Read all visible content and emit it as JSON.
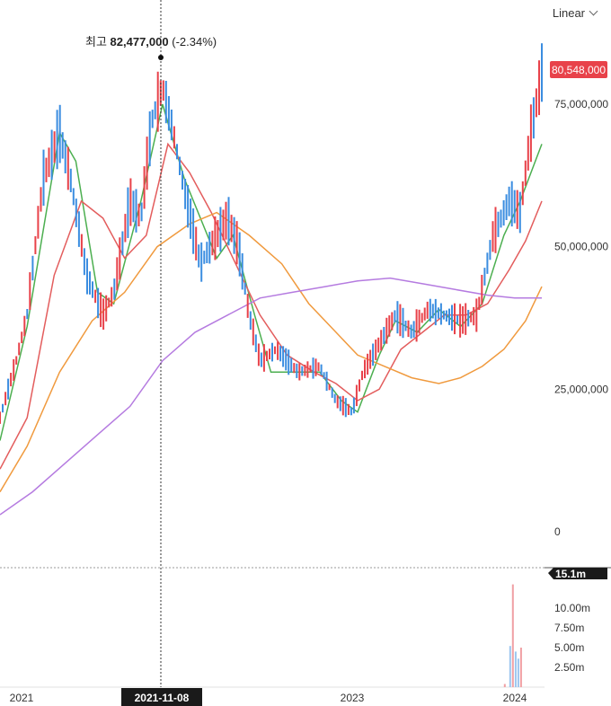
{
  "toolbar": {
    "scale_mode": "Linear"
  },
  "annotation": {
    "label": "최고",
    "value": "82,477,000",
    "change": "(-2.34%)"
  },
  "chart_data": {
    "type": "candlestick",
    "up_color": "#e8424a",
    "down_color": "#3b8de0",
    "x_ticks": [
      "2021",
      "2023",
      "2024"
    ],
    "crosshair_x": "2021-11-08",
    "price_axis": {
      "ticks": [
        0,
        25000000,
        50000000,
        75000000
      ],
      "tick_labels": [
        "0",
        "25,000,000",
        "50,000,000",
        "75,000,000"
      ],
      "current_price": 80548000,
      "current_label": "80,548,000",
      "current_color": "#e8424a"
    },
    "volume_axis": {
      "ticks": [
        2.5,
        5,
        7.5,
        10
      ],
      "tick_labels": [
        "2.50m",
        "5.00m",
        "7.50m",
        "10.00m"
      ],
      "current_label": "15.1m"
    },
    "price_series_approx": [
      {
        "t": 0.0,
        "p": 20000000
      },
      {
        "t": 0.03,
        "p": 30000000
      },
      {
        "t": 0.05,
        "p": 38000000
      },
      {
        "t": 0.08,
        "p": 62000000
      },
      {
        "t": 0.11,
        "p": 70000000
      },
      {
        "t": 0.13,
        "p": 62000000
      },
      {
        "t": 0.16,
        "p": 45000000
      },
      {
        "t": 0.19,
        "p": 38000000
      },
      {
        "t": 0.21,
        "p": 42000000
      },
      {
        "t": 0.24,
        "p": 58000000
      },
      {
        "t": 0.26,
        "p": 55000000
      },
      {
        "t": 0.28,
        "p": 72000000
      },
      {
        "t": 0.3,
        "p": 78000000
      },
      {
        "t": 0.32,
        "p": 70000000
      },
      {
        "t": 0.34,
        "p": 60000000
      },
      {
        "t": 0.37,
        "p": 47000000
      },
      {
        "t": 0.4,
        "p": 52000000
      },
      {
        "t": 0.42,
        "p": 55000000
      },
      {
        "t": 0.44,
        "p": 50000000
      },
      {
        "t": 0.46,
        "p": 38000000
      },
      {
        "t": 0.48,
        "p": 30000000
      },
      {
        "t": 0.51,
        "p": 32000000
      },
      {
        "t": 0.55,
        "p": 28000000
      },
      {
        "t": 0.59,
        "p": 29000000
      },
      {
        "t": 0.62,
        "p": 23000000
      },
      {
        "t": 0.65,
        "p": 21000000
      },
      {
        "t": 0.67,
        "p": 28000000
      },
      {
        "t": 0.7,
        "p": 33000000
      },
      {
        "t": 0.73,
        "p": 38000000
      },
      {
        "t": 0.76,
        "p": 35000000
      },
      {
        "t": 0.79,
        "p": 39000000
      },
      {
        "t": 0.82,
        "p": 38000000
      },
      {
        "t": 0.85,
        "p": 37000000
      },
      {
        "t": 0.88,
        "p": 38000000
      },
      {
        "t": 0.91,
        "p": 52000000
      },
      {
        "t": 0.94,
        "p": 58000000
      },
      {
        "t": 0.96,
        "p": 56000000
      },
      {
        "t": 0.98,
        "p": 70000000
      },
      {
        "t": 1.0,
        "p": 80548000
      }
    ],
    "moving_averages": [
      {
        "color": "#4caf50",
        "points": [
          [
            0.0,
            16000000
          ],
          [
            0.05,
            36000000
          ],
          [
            0.11,
            70000000
          ],
          [
            0.14,
            65000000
          ],
          [
            0.18,
            42000000
          ],
          [
            0.21,
            40000000
          ],
          [
            0.26,
            58000000
          ],
          [
            0.3,
            75000000
          ],
          [
            0.34,
            62000000
          ],
          [
            0.4,
            48000000
          ],
          [
            0.43,
            52000000
          ],
          [
            0.47,
            38000000
          ],
          [
            0.5,
            28000000
          ],
          [
            0.55,
            28000000
          ],
          [
            0.59,
            28000000
          ],
          [
            0.63,
            23000000
          ],
          [
            0.66,
            21000000
          ],
          [
            0.7,
            31000000
          ],
          [
            0.73,
            37000000
          ],
          [
            0.77,
            35000000
          ],
          [
            0.81,
            39000000
          ],
          [
            0.85,
            36000000
          ],
          [
            0.89,
            40000000
          ],
          [
            0.93,
            52000000
          ],
          [
            0.96,
            58000000
          ],
          [
            1.0,
            68000000
          ]
        ]
      },
      {
        "color": "#e35d5d",
        "points": [
          [
            0.0,
            11000000
          ],
          [
            0.05,
            20000000
          ],
          [
            0.1,
            45000000
          ],
          [
            0.15,
            58000000
          ],
          [
            0.19,
            55000000
          ],
          [
            0.23,
            48000000
          ],
          [
            0.27,
            52000000
          ],
          [
            0.31,
            68000000
          ],
          [
            0.35,
            63000000
          ],
          [
            0.39,
            56000000
          ],
          [
            0.43,
            48000000
          ],
          [
            0.48,
            38000000
          ],
          [
            0.53,
            31000000
          ],
          [
            0.58,
            28000000
          ],
          [
            0.62,
            26000000
          ],
          [
            0.66,
            23000000
          ],
          [
            0.7,
            25000000
          ],
          [
            0.74,
            32000000
          ],
          [
            0.78,
            35000000
          ],
          [
            0.82,
            38000000
          ],
          [
            0.86,
            38000000
          ],
          [
            0.9,
            40000000
          ],
          [
            0.94,
            46000000
          ],
          [
            0.97,
            51000000
          ],
          [
            1.0,
            58000000
          ]
        ]
      },
      {
        "color": "#f09a3e",
        "points": [
          [
            0.0,
            7000000
          ],
          [
            0.05,
            15000000
          ],
          [
            0.11,
            28000000
          ],
          [
            0.17,
            37000000
          ],
          [
            0.23,
            42000000
          ],
          [
            0.29,
            50000000
          ],
          [
            0.35,
            54000000
          ],
          [
            0.4,
            56000000
          ],
          [
            0.46,
            52000000
          ],
          [
            0.52,
            47000000
          ],
          [
            0.57,
            40000000
          ],
          [
            0.62,
            35000000
          ],
          [
            0.66,
            31000000
          ],
          [
            0.71,
            29000000
          ],
          [
            0.76,
            27000000
          ],
          [
            0.81,
            26000000
          ],
          [
            0.85,
            27000000
          ],
          [
            0.89,
            29000000
          ],
          [
            0.93,
            32000000
          ],
          [
            0.97,
            37000000
          ],
          [
            1.0,
            43000000
          ]
        ]
      },
      {
        "color": "#b57be0",
        "points": [
          [
            0.0,
            3000000
          ],
          [
            0.06,
            7000000
          ],
          [
            0.12,
            12000000
          ],
          [
            0.18,
            17000000
          ],
          [
            0.24,
            22000000
          ],
          [
            0.3,
            30000000
          ],
          [
            0.36,
            35000000
          ],
          [
            0.42,
            38000000
          ],
          [
            0.48,
            41000000
          ],
          [
            0.54,
            42000000
          ],
          [
            0.6,
            43000000
          ],
          [
            0.66,
            44000000
          ],
          [
            0.72,
            44500000
          ],
          [
            0.78,
            43500000
          ],
          [
            0.84,
            42500000
          ],
          [
            0.9,
            41500000
          ],
          [
            0.95,
            41000000
          ],
          [
            1.0,
            41000000
          ]
        ]
      }
    ]
  }
}
